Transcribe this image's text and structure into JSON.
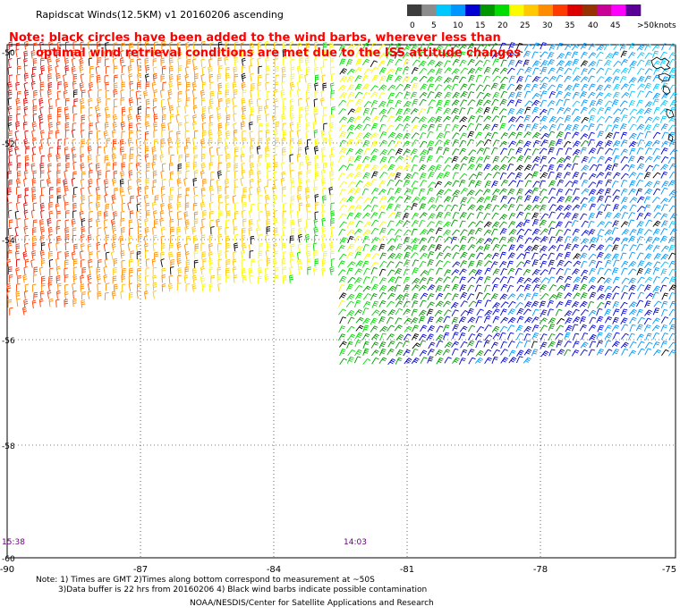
{
  "title": "Rapidscat Winds(12.5KM) v1 20160206 ascending",
  "note_line1": "Note: black circles have been added to the wind barbs, wherever less than",
  "note_line2": "optimal wind retrieval conditions are met due to the ISS attitude changes",
  "legend": {
    "unit": "knots",
    "labels": [
      "0",
      "5",
      "10",
      "15",
      "20",
      "25",
      "30",
      "35",
      "40",
      "45",
      ">50"
    ],
    "colors": [
      "#3c3c3c",
      "#8c8c8c",
      "#00c8ff",
      "#0096ff",
      "#0000d2",
      "#009600",
      "#00dc00",
      "#fafa00",
      "#ffc800",
      "#ff8c00",
      "#ff3c00",
      "#dc0000",
      "#963200",
      "#c80096",
      "#ff00ff",
      "#5a0096"
    ]
  },
  "lat_labels": [
    "-50",
    "-52",
    "-54",
    "-56",
    "-58",
    "-60"
  ],
  "lon_labels": [
    "-90",
    "-87",
    "-84",
    "-81",
    "-78",
    "-75"
  ],
  "time_labels": [
    "15:38",
    "14:03"
  ],
  "footer": {
    "line1": "Note: 1) Times are GMT 2)Times along bottom correspond to measurement at ~50S",
    "line2": "3)Data buffer is 22 hrs from 20160206 4) Black wind barbs indicate possible contamination",
    "line3": "NOAA/NESDIS/Center for Satellite Applications and Research"
  }
}
